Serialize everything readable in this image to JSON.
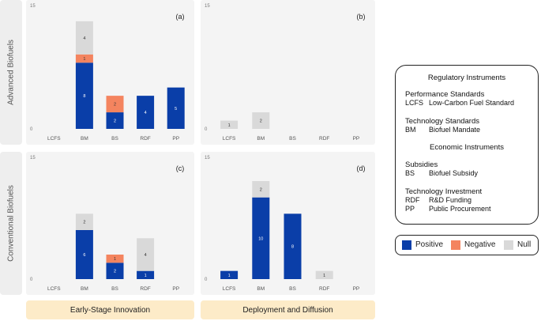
{
  "row_labels": [
    "Advanced Biofuels",
    "Conventional Biofuels"
  ],
  "phase_labels": [
    "Early-Stage Innovation",
    "Deployment and Diffusion"
  ],
  "colors": {
    "positive": "#0a3ea8",
    "negative": "#f4845f",
    "null": "#d9d9d9"
  },
  "legend": {
    "positive": "Positive",
    "negative": "Negative",
    "null": "Null"
  },
  "info": {
    "title": "Regulatory Instruments",
    "sections": [
      {
        "heading": "Performance Standards",
        "abbr": "LCFS",
        "name": "Low-Carbon Fuel Standard"
      },
      {
        "heading": "Technology Standards",
        "abbr": "BM",
        "name": "Biofuel Mandate"
      }
    ],
    "econ_title": "Economic Instruments",
    "econ_sections": [
      {
        "heading": "Subsidies",
        "items": [
          {
            "abbr": "BS",
            "name": "Biofuel Subsidy"
          }
        ]
      },
      {
        "heading": "Technology Investment",
        "items": [
          {
            "abbr": "RDF",
            "name": "R&D Funding"
          },
          {
            "abbr": "PP",
            "name": "Public Procurement"
          }
        ]
      }
    ]
  },
  "chart_data": [
    {
      "type": "bar",
      "stacked": true,
      "panel": "(a)",
      "row": "Advanced Biofuels",
      "phase": "Early-Stage Innovation",
      "categories": [
        "LCFS",
        "BM",
        "BS",
        "RDF",
        "PP"
      ],
      "ylim": [
        0,
        15
      ],
      "yticks": [
        "0",
        "15"
      ],
      "series": [
        {
          "name": "Positive",
          "values": [
            0,
            8,
            2,
            4,
            5
          ]
        },
        {
          "name": "Negative",
          "values": [
            0,
            1,
            2,
            0,
            0
          ]
        },
        {
          "name": "Null",
          "values": [
            0,
            4,
            0,
            0,
            0
          ]
        }
      ]
    },
    {
      "type": "bar",
      "stacked": true,
      "panel": "(b)",
      "row": "Advanced Biofuels",
      "phase": "Deployment and Diffusion",
      "categories": [
        "LCFS",
        "BM",
        "BS",
        "RDF",
        "PP"
      ],
      "ylim": [
        0,
        15
      ],
      "yticks": [
        "0",
        "15"
      ],
      "series": [
        {
          "name": "Positive",
          "values": [
            0,
            0,
            0,
            0,
            0
          ]
        },
        {
          "name": "Negative",
          "values": [
            0,
            0,
            0,
            0,
            0
          ]
        },
        {
          "name": "Null",
          "values": [
            1,
            2,
            0,
            0,
            0
          ]
        }
      ]
    },
    {
      "type": "bar",
      "stacked": true,
      "panel": "(c)",
      "row": "Conventional Biofuels",
      "phase": "Early-Stage Innovation",
      "categories": [
        "LCFS",
        "BM",
        "BS",
        "RDF",
        "PP"
      ],
      "ylim": [
        0,
        15
      ],
      "yticks": [
        "0",
        "15"
      ],
      "series": [
        {
          "name": "Positive",
          "values": [
            0,
            6,
            2,
            1,
            0
          ]
        },
        {
          "name": "Negative",
          "values": [
            0,
            0,
            1,
            0,
            0
          ]
        },
        {
          "name": "Null",
          "values": [
            0,
            2,
            0,
            4,
            0
          ]
        }
      ]
    },
    {
      "type": "bar",
      "stacked": true,
      "panel": "(d)",
      "row": "Conventional Biofuels",
      "phase": "Deployment and Diffusion",
      "categories": [
        "LCFS",
        "BM",
        "BS",
        "RDF",
        "PP"
      ],
      "ylim": [
        0,
        15
      ],
      "yticks": [
        "0",
        "15"
      ],
      "series": [
        {
          "name": "Positive",
          "values": [
            1,
            10,
            8,
            0,
            0
          ]
        },
        {
          "name": "Negative",
          "values": [
            0,
            0,
            0,
            0,
            0
          ]
        },
        {
          "name": "Null",
          "values": [
            0,
            2,
            0,
            1,
            0
          ]
        }
      ]
    }
  ]
}
